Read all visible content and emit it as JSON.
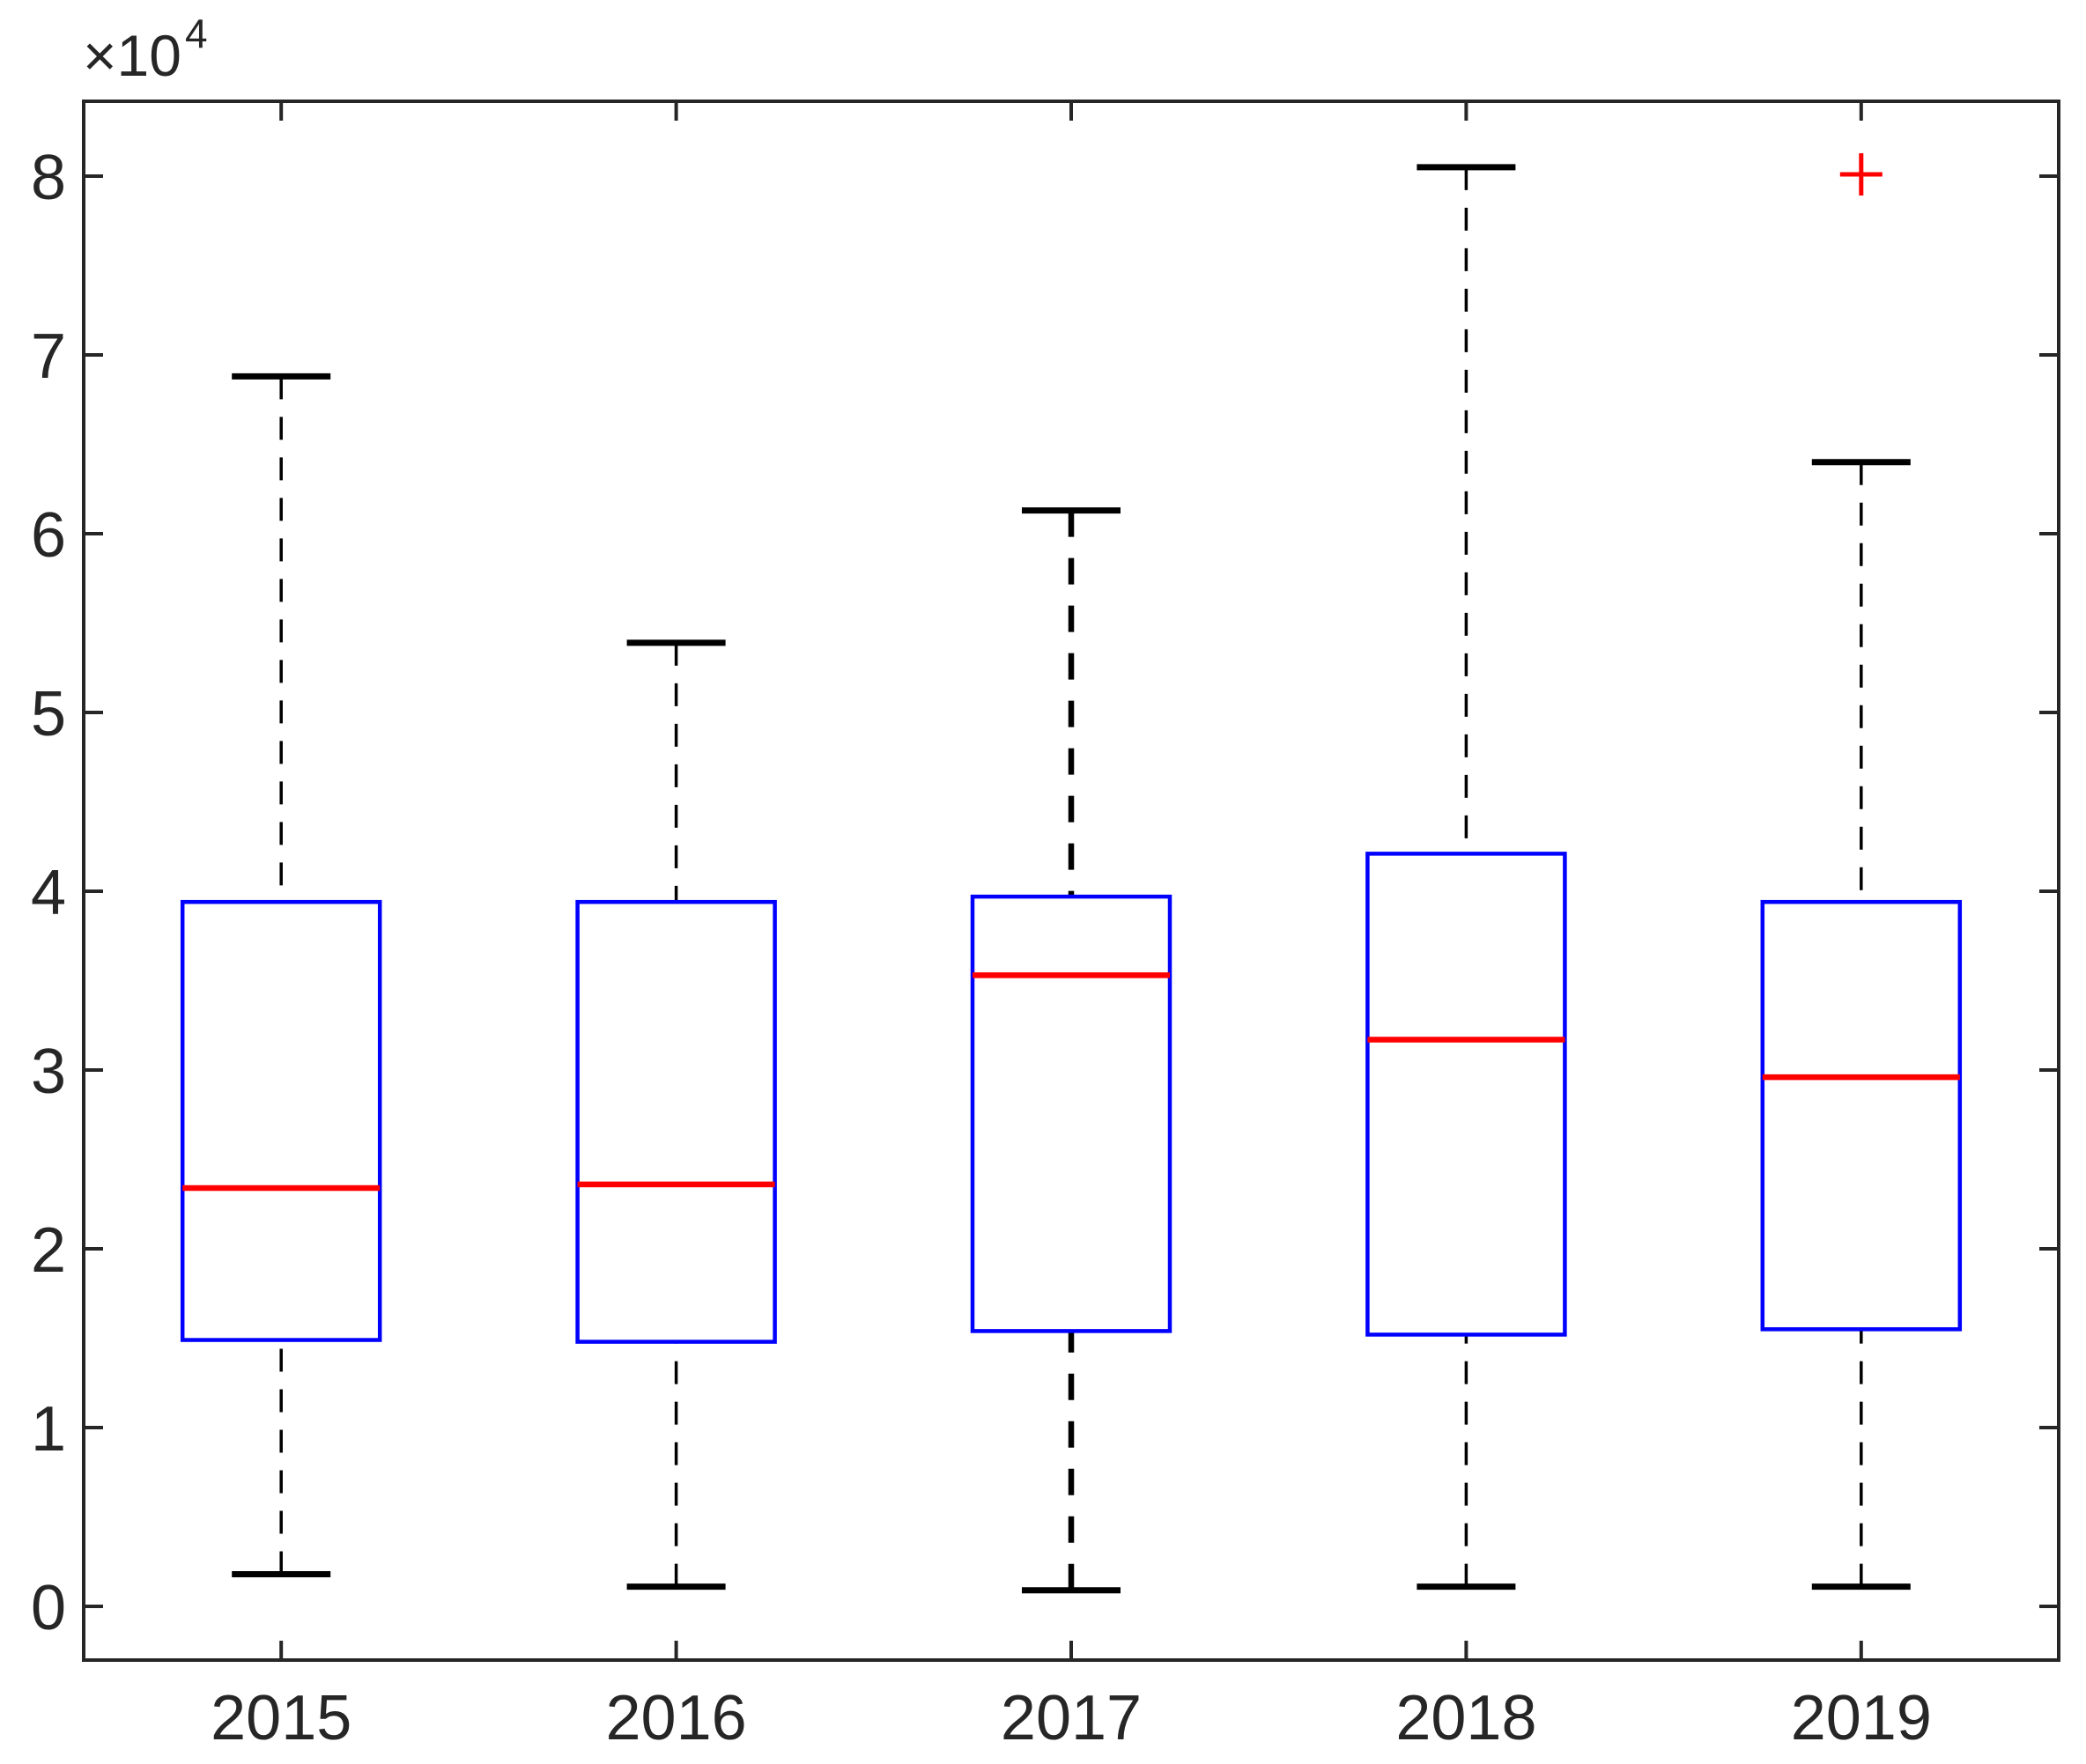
{
  "figure": {
    "background": "#ffffff",
    "axis_color": "#262626",
    "box_color": "#0000ff",
    "median_color": "#ff0000",
    "whisker_color": "#000000",
    "outlier_color": "#ff0000",
    "y_multiplier_label": "×10",
    "y_multiplier_exponent": "4"
  },
  "chart_data": {
    "type": "boxplot",
    "title": "",
    "xlabel": "",
    "ylabel": "",
    "y_axis_multiplier": "×10⁴",
    "categories": [
      "2015",
      "2016",
      "2017",
      "2018",
      "2019"
    ],
    "y_ticks": [
      0,
      1,
      2,
      3,
      4,
      5,
      6,
      7,
      8
    ],
    "ylim": [
      -0.3,
      8.42
    ],
    "grid": false,
    "legend": null,
    "series": [
      {
        "year": "2015",
        "whisker_low": 0.18,
        "q1": 1.49,
        "median": 2.34,
        "q3": 3.94,
        "whisker_high": 6.88,
        "outliers": [],
        "bold_whisker": false
      },
      {
        "year": "2016",
        "whisker_low": 0.11,
        "q1": 1.48,
        "median": 2.36,
        "q3": 3.94,
        "whisker_high": 5.39,
        "outliers": [],
        "bold_whisker": false
      },
      {
        "year": "2017",
        "whisker_low": 0.09,
        "q1": 1.54,
        "median": 3.53,
        "q3": 3.97,
        "whisker_high": 6.13,
        "outliers": [],
        "bold_whisker": true
      },
      {
        "year": "2018",
        "whisker_low": 0.11,
        "q1": 1.52,
        "median": 3.17,
        "q3": 4.21,
        "whisker_high": 8.05,
        "outliers": [],
        "bold_whisker": false
      },
      {
        "year": "2019",
        "whisker_low": 0.11,
        "q1": 1.55,
        "median": 2.96,
        "q3": 3.94,
        "whisker_high": 6.4,
        "outliers": [
          8.01
        ],
        "bold_whisker": false
      }
    ]
  }
}
